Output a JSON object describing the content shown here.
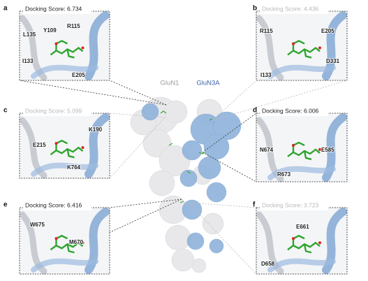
{
  "center": {
    "labels": [
      "GluN1",
      "GluN3A"
    ]
  },
  "panels": [
    {
      "letter": "a",
      "score": "Docking Score: 6.734",
      "residues": [
        "Y109",
        "R115",
        "L135",
        "I133",
        "E205"
      ]
    },
    {
      "letter": "b",
      "score": "Docking Score: 4.436",
      "residues": [
        "R115",
        "E205",
        "I133",
        "D331"
      ]
    },
    {
      "letter": "c",
      "score": "Docking Score: 5.099",
      "residues": [
        "K190",
        "E215",
        "K764"
      ]
    },
    {
      "letter": "d",
      "score": "Docking Score: 6.006",
      "residues": [
        "E585",
        "N674",
        "R673"
      ]
    },
    {
      "letter": "e",
      "score": "Docking Score: 6.416",
      "residues": [
        "W675",
        "M670"
      ]
    },
    {
      "letter": "f",
      "score": "Docking Score: 3.723",
      "residues": [
        "E661",
        "D658"
      ]
    }
  ]
}
